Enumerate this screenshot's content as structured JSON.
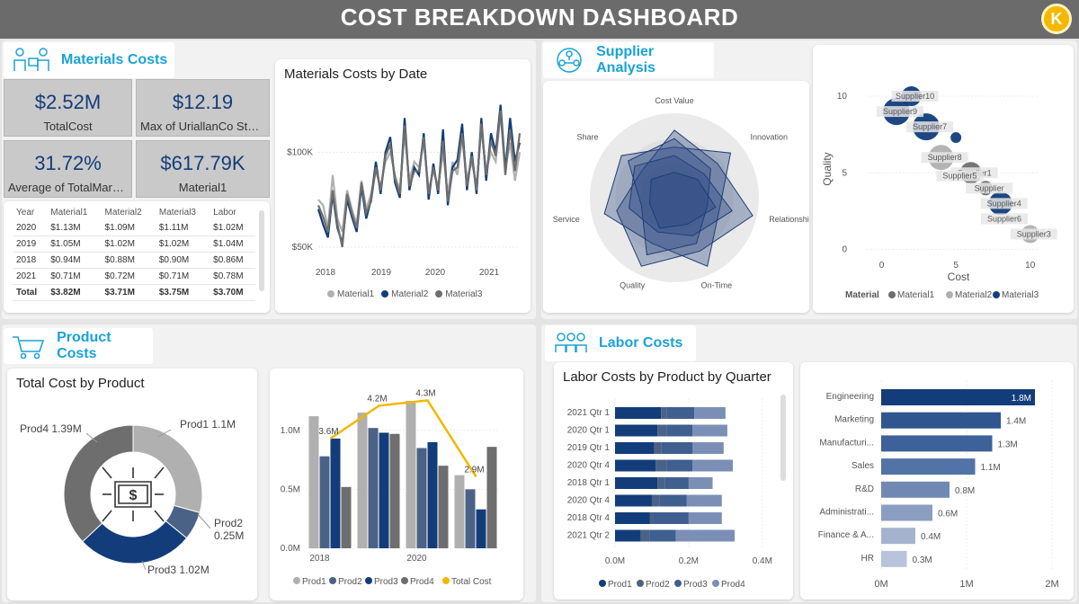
{
  "title": "COST BREAKDOWN DASHBOARD",
  "logo_letter": "K",
  "colors": {
    "m1": "#b0b0b0",
    "m2": "#123d7a",
    "m3": "#6e6e6e",
    "p1": "#b0b0b0",
    "p2": "#4a6285",
    "p3": "#123d7a",
    "p4": "#6e6e6e",
    "total": "#f0b800",
    "accent": "#1aa3d6"
  },
  "sections": {
    "materials": "Materials Costs",
    "supplier": "Supplier Analysis",
    "product": "Product Costs",
    "labor": "Labor Costs"
  },
  "kpis": [
    {
      "value": "$2.52M",
      "label": "TotalCost"
    },
    {
      "value": "$12.19",
      "label": "Max of UriallanCo Stock"
    },
    {
      "value": "31.72%",
      "label": "Average of TotalMarq..."
    },
    {
      "value": "$617.79K",
      "label": "Material1"
    }
  ],
  "materials_table": {
    "headers": [
      "Year",
      "Material1",
      "Material2",
      "Material3",
      "Labor"
    ],
    "rows": [
      [
        "2020",
        "$1.13M",
        "$1.09M",
        "$1.11M",
        "$1.02M"
      ],
      [
        "2019",
        "$1.05M",
        "$1.02M",
        "$1.02M",
        "$1.04M"
      ],
      [
        "2018",
        "$0.94M",
        "$0.88M",
        "$0.90M",
        "$0.86M"
      ],
      [
        "2021",
        "$0.71M",
        "$0.72M",
        "$0.71M",
        "$0.78M"
      ]
    ],
    "total": [
      "Total",
      "$3.82M",
      "$3.71M",
      "$3.75M",
      "$3.70M"
    ]
  },
  "chart_data": [
    {
      "id": "materials_by_date",
      "type": "line",
      "title": "Materials Costs by Date",
      "y_ticks": [
        "$100K",
        "$50K"
      ],
      "x_ticks": [
        "2018",
        "2019",
        "2020",
        "2021"
      ],
      "ylim": [
        40000,
        130000
      ],
      "series": [
        {
          "name": "Material1",
          "values": [
            75000,
            72000,
            60000,
            88000,
            65000,
            58000,
            80000,
            70000,
            62000,
            85000,
            70000,
            78000,
            90000,
            82000,
            95000,
            100000,
            88000,
            80000,
            110000,
            85000,
            95000,
            92000,
            105000,
            80000,
            90000,
            82000,
            100000,
            78000,
            95000,
            88000,
            108000,
            86000,
            95000,
            82000,
            112000,
            90000,
            100000,
            95000,
            120000,
            92000,
            105000,
            85000,
            100000
          ]
        },
        {
          "name": "Material2",
          "values": [
            70000,
            62000,
            55000,
            78000,
            60000,
            52000,
            75000,
            66000,
            58000,
            82000,
            65000,
            75000,
            95000,
            78000,
            100000,
            108000,
            84000,
            76000,
            118000,
            80000,
            92000,
            88000,
            110000,
            75000,
            94000,
            78000,
            112000,
            72000,
            92000,
            96000,
            115000,
            80000,
            100000,
            78000,
            118000,
            85000,
            110000,
            100000,
            125000,
            90000,
            118000,
            95000,
            105000
          ]
        },
        {
          "name": "Material3",
          "values": [
            72000,
            66000,
            58000,
            80000,
            62000,
            50000,
            78000,
            68000,
            60000,
            84000,
            68000,
            74000,
            92000,
            80000,
            98000,
            104000,
            86000,
            78000,
            114000,
            82000,
            90000,
            90000,
            108000,
            78000,
            92000,
            80000,
            106000,
            74000,
            90000,
            92000,
            110000,
            82000,
            98000,
            80000,
            115000,
            88000,
            106000,
            98000,
            122000,
            88000,
            112000,
            90000,
            110000
          ]
        }
      ]
    },
    {
      "id": "supplier_radar",
      "type": "radar",
      "axes": [
        "Cost Value",
        "Innovation",
        "Relationship",
        "On-Time",
        "Quality",
        "Service",
        "Share"
      ],
      "series": [
        {
          "values": [
            0.8,
            0.65,
            0.95,
            0.7,
            0.9,
            0.7,
            0.5
          ]
        },
        {
          "values": [
            0.6,
            0.85,
            0.55,
            0.9,
            0.6,
            0.85,
            0.8
          ]
        },
        {
          "values": [
            0.5,
            0.45,
            0.7,
            0.5,
            0.45,
            0.55,
            0.6
          ]
        },
        {
          "values": [
            0.7,
            0.55,
            0.4,
            0.6,
            0.75,
            0.4,
            0.7
          ]
        },
        {
          "values": [
            0.3,
            0.35,
            0.5,
            0.35,
            0.4,
            0.3,
            0.35
          ]
        }
      ]
    },
    {
      "id": "supplier_bubble",
      "type": "scatter",
      "xlabel": "Cost",
      "ylabel": "Quality",
      "x_ticks": [
        "0",
        "5",
        "10"
      ],
      "y_ticks": [
        "0",
        "5",
        "10"
      ],
      "xlim": [
        -1,
        10.5
      ],
      "ylim": [
        -0.5,
        11
      ],
      "legend_title": "Material",
      "legend": [
        "Material1",
        "Material2",
        "Material3"
      ],
      "points": [
        {
          "label": "Supplier10",
          "x": 2.0,
          "y": 10.0,
          "size": 11,
          "mat": 2
        },
        {
          "label": "Supplier9",
          "x": 1.0,
          "y": 9.0,
          "size": 15,
          "mat": 2
        },
        {
          "label": "Supplier7",
          "x": 3.0,
          "y": 8.0,
          "size": 15,
          "mat": 2
        },
        {
          "label": "",
          "x": 5.0,
          "y": 7.3,
          "size": 6,
          "mat": 2
        },
        {
          "label": "Supplier8",
          "x": 4.0,
          "y": 6.0,
          "size": 14,
          "mat": 1
        },
        {
          "label": "Supplier1",
          "x": 6.0,
          "y": 5.0,
          "size": 12,
          "mat": 0
        },
        {
          "label": "Supplier5",
          "x": 5.5,
          "y": 4.8,
          "size": 0,
          "mat": 0
        },
        {
          "label": "Supplier",
          "x": 7.0,
          "y": 4.0,
          "size": 8,
          "mat": 0
        },
        {
          "label": "Supplier4",
          "x": 8.0,
          "y": 3.0,
          "size": 13,
          "mat": 2
        },
        {
          "label": "Supplier6",
          "x": 8.5,
          "y": 2.0,
          "size": 0,
          "mat": 0
        },
        {
          "label": "Supplier3",
          "x": 10.0,
          "y": 1.0,
          "size": 10,
          "mat": 1
        }
      ]
    },
    {
      "id": "total_by_product",
      "type": "pie",
      "title": "Total Cost by Product",
      "labels": [
        "Prod1 1.1M",
        "Prod2 0.25M",
        "Prod3 1.02M",
        "Prod4 1.39M"
      ],
      "values": [
        1.1,
        0.25,
        1.02,
        1.39
      ]
    },
    {
      "id": "product_combo",
      "type": "bar",
      "y_ticks": [
        "1.0M",
        "0.5M",
        "0.0M"
      ],
      "x_ticks": [
        "2018",
        "2020"
      ],
      "ylim": [
        0,
        1.25
      ],
      "groups": 4,
      "series": [
        {
          "name": "Prod1",
          "values": [
            1.12,
            1.15,
            1.25,
            0.62
          ]
        },
        {
          "name": "Prod2",
          "values": [
            0.78,
            1.02,
            0.85,
            0.5
          ]
        },
        {
          "name": "Prod3",
          "values": [
            0.93,
            0.98,
            0.9,
            0.33
          ]
        },
        {
          "name": "Prod4",
          "values": [
            0.52,
            0.97,
            0.7,
            0.86
          ]
        }
      ],
      "total": {
        "name": "Total Cost",
        "values": [
          3.6,
          4.2,
          4.3,
          2.9
        ],
        "labels": [
          "3.6M",
          "4.2M",
          "4.3M",
          "2.9M"
        ],
        "ylim": [
          2.0,
          4.8
        ]
      }
    },
    {
      "id": "labor_by_quarter",
      "type": "bar",
      "title": "Labor Costs by Product by Quarter",
      "categories": [
        "2021 Qtr 1",
        "2020 Qtr 1",
        "2019 Qtr 1",
        "2020 Qtr 4",
        "2018 Qtr 1",
        "2020 Qtr 4",
        "2018 Qtr 4",
        "2021 Qtr 2"
      ],
      "x_ticks": [
        "0.0M",
        "0.2M",
        "0.4M"
      ],
      "xlim": [
        0,
        0.42
      ],
      "series": [
        {
          "name": "Prod1",
          "values": [
            0.125,
            0.115,
            0.105,
            0.11,
            0.115,
            0.1,
            0.095,
            0.07
          ]
        },
        {
          "name": "Prod2",
          "values": [
            0.015,
            0.025,
            0.02,
            0.03,
            0.02,
            0.02,
            0.01,
            0.025
          ]
        },
        {
          "name": "Prod3",
          "values": [
            0.075,
            0.07,
            0.085,
            0.07,
            0.065,
            0.075,
            0.095,
            0.07
          ]
        },
        {
          "name": "Prod4",
          "values": [
            0.085,
            0.095,
            0.085,
            0.11,
            0.065,
            0.095,
            0.09,
            0.16
          ]
        }
      ]
    },
    {
      "id": "labor_by_dept",
      "type": "bar",
      "categories": [
        "Engineering",
        "Marketing",
        "Manufacturi...",
        "Sales",
        "R&D",
        "Administrati...",
        "Finance & A...",
        "HR"
      ],
      "values": [
        1.8,
        1.4,
        1.3,
        1.1,
        0.8,
        0.6,
        0.4,
        0.3
      ],
      "labels": [
        "1.8M",
        "1.4M",
        "1.3M",
        "1.1M",
        "0.8M",
        "0.6M",
        "0.4M",
        "0.3M"
      ],
      "x_ticks": [
        "0M",
        "1M",
        "2M"
      ],
      "xlim": [
        0,
        2
      ]
    }
  ]
}
